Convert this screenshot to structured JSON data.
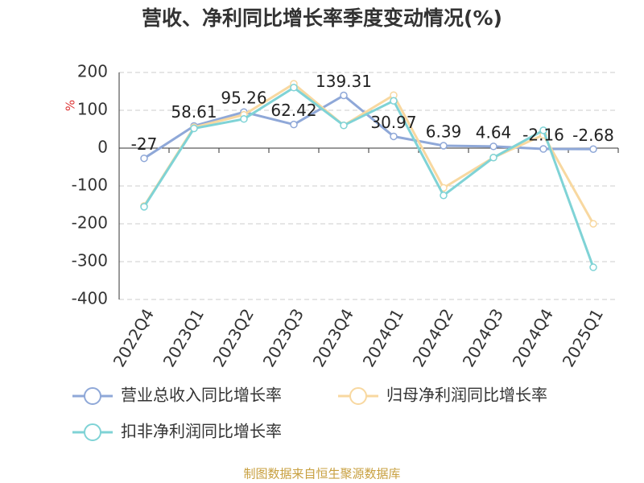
{
  "chart_data": {
    "type": "line",
    "title": "营收、净利同比增长率季度变动情况(%)",
    "y_label": "%",
    "footer": "制图数据来自恒生聚源数据库",
    "categories": [
      "2022Q4",
      "2023Q1",
      "2023Q2",
      "2023Q3",
      "2023Q4",
      "2024Q1",
      "2024Q2",
      "2024Q3",
      "2024Q4",
      "2025Q1"
    ],
    "series": [
      {
        "name": "营业总收入同比增长率",
        "color": "#8fa8d8",
        "values": [
          -27,
          58.61,
          95.26,
          62.42,
          139.31,
          30.97,
          6.39,
          4.64,
          -2.16,
          -2.68
        ],
        "show_labels": true
      },
      {
        "name": "归母净利润同比增长率",
        "color": "#f8d8a0",
        "values": [
          -153,
          55,
          88,
          170,
          60,
          140,
          -105,
          -25,
          35,
          -200
        ],
        "show_labels": false
      },
      {
        "name": "扣非净利润同比增长率",
        "color": "#7fd3d6",
        "values": [
          -155,
          52,
          77,
          160,
          60,
          125,
          -125,
          -25,
          47,
          -315
        ],
        "show_labels": false
      }
    ],
    "ylim": [
      -400,
      200
    ],
    "yticks": [
      -400,
      -300,
      -200,
      -100,
      0,
      100,
      200
    ],
    "grid": true
  }
}
